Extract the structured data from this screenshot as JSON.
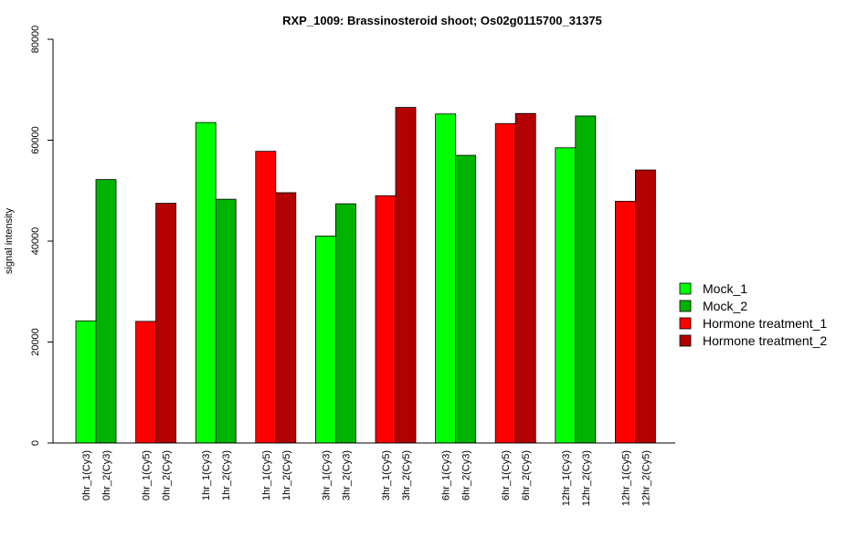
{
  "chart_data": {
    "type": "bar",
    "title": "RXP_1009: Brassinosteroid shoot; Os02g0115700_31375",
    "xlabel": "",
    "ylabel": "signal intensity",
    "ylim": [
      0,
      80000
    ],
    "yticks": [
      "0",
      "20000",
      "40000",
      "60000",
      "80000"
    ],
    "grid": false,
    "legend_position": "right",
    "legend": [
      {
        "name": "Mock_1",
        "color": "#00ff00"
      },
      {
        "name": "Mock_2",
        "color": "#00b300"
      },
      {
        "name": "Hormone treatment_1",
        "color": "#ff0000"
      },
      {
        "name": "Hormone treatment_2",
        "color": "#b30000"
      }
    ],
    "groups": [
      {
        "bars": [
          {
            "label": "0hr_1(Cy3)",
            "value": 24200,
            "series": 0
          },
          {
            "label": "0hr_2(Cy3)",
            "value": 52200,
            "series": 1
          }
        ]
      },
      {
        "bars": [
          {
            "label": "0hr_1(Cy5)",
            "value": 24100,
            "series": 2
          },
          {
            "label": "0hr_2(Cy5)",
            "value": 47500,
            "series": 3
          }
        ]
      },
      {
        "bars": [
          {
            "label": "1hr_1(Cy3)",
            "value": 63500,
            "series": 0
          },
          {
            "label": "1hr_2(Cy3)",
            "value": 48300,
            "series": 1
          }
        ]
      },
      {
        "bars": [
          {
            "label": "1hr_1(Cy5)",
            "value": 57800,
            "series": 2
          },
          {
            "label": "1hr_2(Cy5)",
            "value": 49600,
            "series": 3
          }
        ]
      },
      {
        "bars": [
          {
            "label": "3hr_1(Cy3)",
            "value": 41000,
            "series": 0
          },
          {
            "label": "3hr_2(Cy3)",
            "value": 47400,
            "series": 1
          }
        ]
      },
      {
        "bars": [
          {
            "label": "3hr_1(Cy5)",
            "value": 49000,
            "series": 2
          },
          {
            "label": "3hr_2(Cy5)",
            "value": 66500,
            "series": 3
          }
        ]
      },
      {
        "bars": [
          {
            "label": "6hr_1(Cy3)",
            "value": 65200,
            "series": 0
          },
          {
            "label": "6hr_2(Cy3)",
            "value": 57000,
            "series": 1
          }
        ]
      },
      {
        "bars": [
          {
            "label": "6hr_1(Cy5)",
            "value": 63300,
            "series": 2
          },
          {
            "label": "6hr_2(Cy5)",
            "value": 65300,
            "series": 3
          }
        ]
      },
      {
        "bars": [
          {
            "label": "12hr_1(Cy3)",
            "value": 58500,
            "series": 0
          },
          {
            "label": "12hr_2(Cy3)",
            "value": 64800,
            "series": 1
          }
        ]
      },
      {
        "bars": [
          {
            "label": "12hr_1(Cy5)",
            "value": 47900,
            "series": 2
          },
          {
            "label": "12hr_2(Cy5)",
            "value": 54100,
            "series": 3
          }
        ]
      }
    ]
  }
}
